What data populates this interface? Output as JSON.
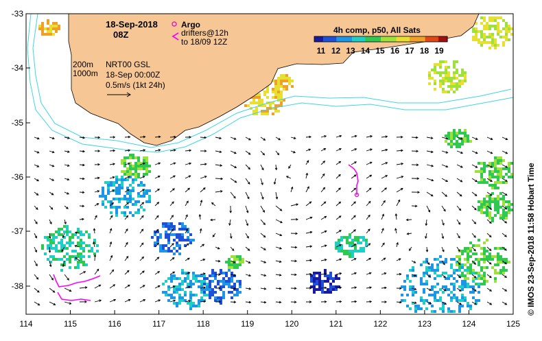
{
  "map": {
    "date_title": "18-Sep-2018",
    "time_title": "08Z",
    "legend_argo_label": "Argo",
    "legend_drifters_line1": "drifters@12h",
    "legend_drifters_line2": "to 18/09 12Z",
    "isobath_1": "200m",
    "isobath_2": "1000m",
    "product_line1": "NRT00 GSL",
    "product_line2": "18-Sep 00:00Z",
    "product_line3": "0.5m/s (1kt 24h)",
    "colorbar_title": "4h comp, p50, All Sats",
    "colorbar_ticks": [
      "11",
      "12",
      "13",
      "14",
      "15",
      "16",
      "17",
      "18",
      "19"
    ],
    "credit": "© IMOS 23-Sep-2018 11:58 Hobart Time",
    "x_ticks": [
      "114",
      "115",
      "116",
      "117",
      "118",
      "119",
      "120",
      "121",
      "122",
      "123",
      "124",
      "125"
    ],
    "y_ticks": [
      "-33",
      "-34",
      "-35",
      "-36",
      "-37",
      "-38"
    ],
    "colors": {
      "land": "#f6c795",
      "ocean": "#ffffff",
      "isobath": "#3fd4e6",
      "argo": "#e020c0",
      "drifters": "#ff00ff",
      "sst_scale": [
        "#1a1aa0",
        "#1e50d8",
        "#1e96e6",
        "#1ecfc8",
        "#2fc850",
        "#9ee13a",
        "#e8e030",
        "#f0a028",
        "#e04818",
        "#a01010"
      ]
    }
  }
}
